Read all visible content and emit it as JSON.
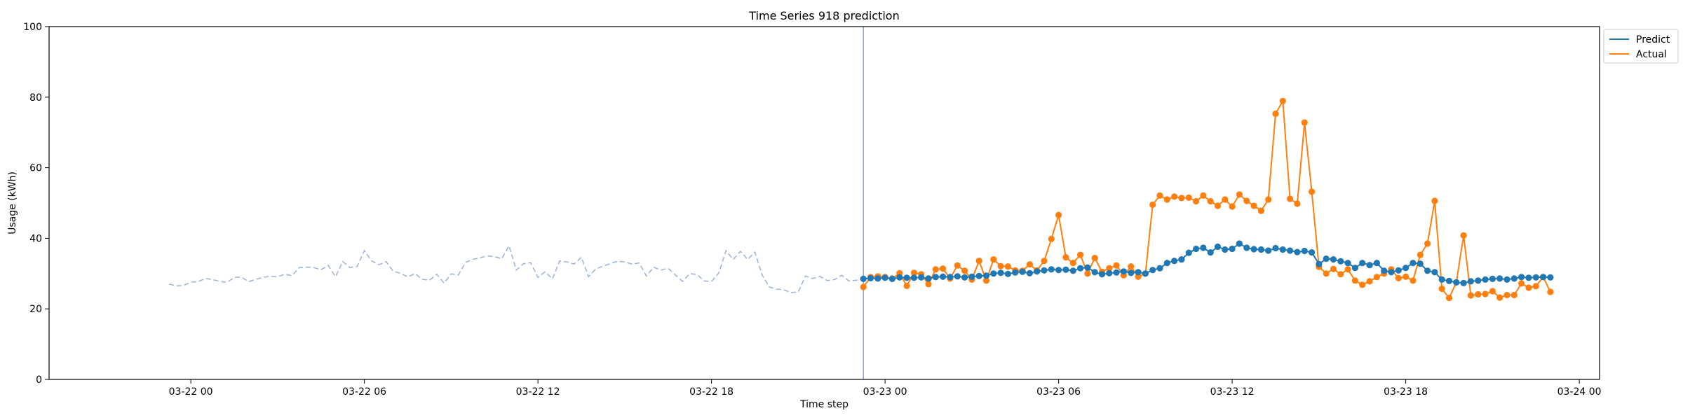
{
  "chart_data": {
    "type": "line",
    "title": "Time Series 918 prediction",
    "xlabel": "Time step",
    "ylabel": "Usage (kWh)",
    "ylim": [
      0,
      100
    ],
    "yticks": [
      0,
      20,
      40,
      60,
      80,
      100
    ],
    "xlim": [
      "2022-03-21 19:06",
      "2022-03-24 00:42"
    ],
    "xticks": [
      {
        "t": "2022-03-22 00:00",
        "label": "03-22 00"
      },
      {
        "t": "2022-03-22 06:00",
        "label": "03-22 06"
      },
      {
        "t": "2022-03-22 12:00",
        "label": "03-22 12"
      },
      {
        "t": "2022-03-22 18:00",
        "label": "03-22 18"
      },
      {
        "t": "2022-03-23 00:00",
        "label": "03-23 00"
      },
      {
        "t": "2022-03-23 06:00",
        "label": "03-23 06"
      },
      {
        "t": "2022-03-23 12:00",
        "label": "03-23 12"
      },
      {
        "t": "2022-03-23 18:00",
        "label": "03-23 18"
      },
      {
        "t": "2022-03-24 00:00",
        "label": "03-24 00"
      }
    ],
    "forecast_start": "2022-03-22 23:15",
    "legend": {
      "placement": "top-right outside"
    },
    "history": {
      "start": "2022-03-21 23:15",
      "step_minutes": 15,
      "color": "#9ab2d3",
      "style": "dashed",
      "values": [
        27.0,
        26.5,
        26.6,
        27.6,
        27.7,
        28.6,
        28.3,
        27.8,
        27.5,
        28.9,
        29.0,
        27.7,
        28.4,
        28.9,
        29.2,
        29.1,
        29.8,
        29.4,
        31.7,
        31.8,
        31.7,
        31.1,
        32.3,
        29.1,
        33.4,
        31.7,
        32.0,
        36.5,
        33.6,
        32.5,
        33.4,
        30.6,
        30.1,
        29.0,
        30.0,
        28.4,
        28.1,
        29.8,
        27.3,
        29.9,
        29.6,
        33.2,
        34.0,
        34.5,
        35.0,
        34.8,
        34.2,
        37.9,
        31.0,
        32.8,
        33.1,
        28.9,
        30.5,
        28.5,
        33.6,
        33.3,
        32.7,
        34.6,
        29.1,
        31.3,
        32.1,
        32.8,
        33.5,
        33.3,
        32.7,
        33.0,
        29.3,
        31.8,
        31.0,
        31.5,
        29.6,
        27.8,
        30.0,
        29.7,
        27.9,
        27.8,
        30.1,
        36.5,
        34.0,
        36.3,
        34.0,
        36.1,
        29.6,
        26.2,
        25.6,
        25.4,
        24.6,
        24.8,
        29.3,
        28.6,
        29.2,
        28.0,
        28.3,
        29.5,
        27.9,
        28.1,
        28.6,
        28.9
      ]
    },
    "series": [
      {
        "name": "Predict",
        "color": "#1f77b4",
        "start": "2022-03-22 23:15",
        "step_minutes": 15,
        "values": [
          28.5,
          28.7,
          28.6,
          28.8,
          28.5,
          28.9,
          28.8,
          28.8,
          28.9,
          28.6,
          29.0,
          29.1,
          29.0,
          29.2,
          28.9,
          29.1,
          29.3,
          29.4,
          30.0,
          30.2,
          29.9,
          30.3,
          30.5,
          30.1,
          30.6,
          30.9,
          31.2,
          31.0,
          31.1,
          30.8,
          31.5,
          31.7,
          30.4,
          29.8,
          30.1,
          30.3,
          30.6,
          30.2,
          30.4,
          30.0,
          31.0,
          31.5,
          33.0,
          33.6,
          34.0,
          35.9,
          37.0,
          37.3,
          36.0,
          37.6,
          36.8,
          37.0,
          38.5,
          37.3,
          36.9,
          36.8,
          36.5,
          37.2,
          36.8,
          36.5,
          36.1,
          36.4,
          36.0,
          32.7,
          34.2,
          34.0,
          33.5,
          33.0,
          31.6,
          33.0,
          32.4,
          33.0,
          30.8,
          30.4,
          30.9,
          31.6,
          33.0,
          32.8,
          30.8,
          30.4,
          28.3,
          27.9,
          27.5,
          27.3,
          27.8,
          28.0,
          28.3,
          28.5,
          28.6,
          28.3,
          28.6,
          29.0,
          28.8,
          28.9,
          29.0,
          28.9
        ]
      },
      {
        "name": "Actual",
        "color": "#ff7f0e",
        "start": "2022-03-22 23:15",
        "step_minutes": 15,
        "values": [
          26.2,
          29.0,
          29.2,
          29.0,
          28.6,
          30.1,
          26.5,
          30.2,
          29.8,
          27.0,
          31.2,
          31.4,
          28.6,
          32.3,
          30.8,
          28.3,
          33.6,
          28.0,
          34.0,
          32.1,
          32.0,
          30.9,
          30.8,
          32.6,
          30.9,
          33.6,
          39.8,
          46.6,
          34.6,
          33.0,
          35.3,
          30.0,
          34.4,
          30.5,
          31.5,
          32.3,
          29.5,
          32.0,
          29.1,
          30.0,
          49.5,
          52.1,
          51.0,
          51.8,
          51.4,
          51.5,
          50.5,
          52.1,
          50.5,
          49.2,
          51.0,
          49.0,
          52.4,
          50.6,
          49.2,
          47.8,
          51.0,
          75.3,
          78.9,
          51.2,
          49.8,
          72.8,
          53.2,
          31.9,
          30.0,
          31.3,
          29.8,
          31.2,
          28.0,
          26.8,
          27.8,
          29.0,
          30.0,
          31.2,
          28.7,
          29.1,
          28.0,
          35.3,
          38.5,
          50.6,
          25.7,
          23.1,
          27.5,
          40.8,
          23.8,
          24.1,
          24.2,
          25.0,
          23.2,
          23.9,
          23.9,
          27.2,
          26.0,
          26.4,
          29.0,
          24.8
        ]
      }
    ]
  }
}
